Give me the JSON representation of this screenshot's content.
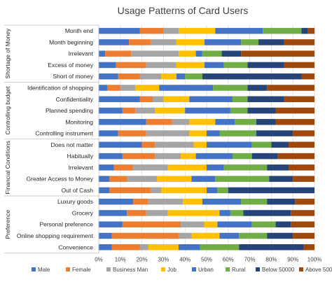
{
  "chart_data": {
    "type": "bar",
    "orientation": "horizontal",
    "stacked": true,
    "normalized": true,
    "title": "Usage Patterns of Card Users",
    "xlabel": "",
    "ylabel": "",
    "xlim": [
      0,
      100
    ],
    "x_ticks": [
      "0%",
      "10%",
      "20%",
      "30%",
      "40%",
      "50%",
      "60%",
      "70%",
      "80%",
      "90%",
      "100%"
    ],
    "grid": true,
    "legend_position": "bottom",
    "groups": [
      {
        "name": "Shortage of Money",
        "categories": [
          "Month end",
          "Month beginning",
          "Irrelevant",
          "Excess of money",
          "Short of money"
        ]
      },
      {
        "name": "Controlling budget",
        "categories": [
          "Identification of shopping",
          "Confidentiality",
          "Planned spending",
          "Monitoring",
          "Controlling instrument"
        ]
      },
      {
        "name": "Financial Conditions",
        "categories": [
          "Does not matter",
          "Habitually",
          "Irrelevant",
          "Greater Access to Money",
          "Out of Cash"
        ]
      },
      {
        "name": "Preference",
        "categories": [
          "Luxury goods",
          "Grocery",
          "Personal preference",
          "Online shopping requirement",
          "Convenience"
        ]
      }
    ],
    "series": [
      {
        "name": "Male",
        "color": "#4472C4",
        "values": [
          19,
          14,
          3,
          8,
          9,
          4,
          19,
          11,
          22,
          9,
          20,
          11,
          7,
          5,
          5,
          16,
          13,
          11,
          6,
          6
        ]
      },
      {
        "name": "Female",
        "color": "#ED7D31",
        "values": [
          11,
          10,
          12,
          14,
          10,
          6,
          6,
          6,
          12,
          13,
          6,
          15,
          9,
          8,
          19,
          7,
          9,
          27,
          31,
          13
        ]
      },
      {
        "name": "Business Man",
        "color": "#A5A5A5",
        "values": [
          7,
          12,
          22,
          14,
          10,
          7,
          5,
          9,
          8,
          20,
          18,
          12,
          16,
          14,
          5,
          16,
          10,
          11,
          6,
          4
        ]
      },
      {
        "name": "Job",
        "color": "#FFC000",
        "values": [
          17,
          13,
          8,
          13,
          7,
          11,
          12,
          14,
          12,
          8,
          6,
          7,
          18,
          16,
          21,
          9,
          24,
          6,
          13,
          14
        ]
      },
      {
        "name": "Urban",
        "color": "#4472C4",
        "values": [
          22,
          17,
          3,
          9,
          4,
          25,
          20,
          21,
          9,
          6,
          21,
          17,
          8,
          11,
          5,
          18,
          5,
          16,
          9,
          10
        ]
      },
      {
        "name": "Rural",
        "color": "#70AD47",
        "values": [
          18,
          8,
          9,
          11,
          8,
          16,
          7,
          8,
          10,
          17,
          9,
          9,
          20,
          25,
          5,
          12,
          6,
          11,
          13,
          18
        ]
      },
      {
        "name": "Below 50000",
        "color": "#264478",
        "values": [
          3,
          12,
          9,
          17,
          46,
          9,
          17,
          13,
          9,
          17,
          8,
          12,
          10,
          11,
          40,
          13,
          22,
          7,
          12,
          30
        ]
      },
      {
        "name": "Above 50000",
        "color": "#9E480E",
        "values": [
          3,
          14,
          34,
          14,
          6,
          22,
          14,
          18,
          18,
          10,
          12,
          17,
          12,
          10,
          0,
          9,
          11,
          11,
          10,
          5
        ]
      }
    ]
  }
}
